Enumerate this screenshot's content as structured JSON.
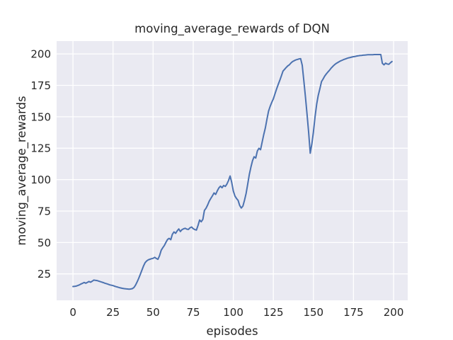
{
  "chart_data": {
    "type": "line",
    "title": "moving_average_rewards of DQN",
    "xlabel": "episodes",
    "ylabel": "moving_average_rewards",
    "x_ticks": [
      0,
      25,
      50,
      75,
      100,
      125,
      150,
      175,
      200
    ],
    "y_ticks": [
      25,
      50,
      75,
      100,
      125,
      150,
      175,
      200
    ],
    "xlim": [
      -10.2,
      208.8
    ],
    "ylim": [
      4.0,
      210.2
    ],
    "grid": true,
    "legend_position": "none",
    "style": "seaborn-darkgrid",
    "colors": {
      "line": "#4c72b0",
      "plot_background": "#eaeaf2",
      "gridline": "#ffffff",
      "figure_background": "#ffffff",
      "text": "#262626"
    },
    "series": [
      {
        "name": "moving_average_rewards",
        "x_start": 0,
        "x_step": 1,
        "values": [
          15.0,
          15.1,
          15.3,
          15.8,
          16.3,
          17.0,
          17.6,
          18.2,
          17.6,
          18.3,
          19.0,
          18.4,
          19.2,
          20.1,
          19.9,
          19.7,
          19.3,
          18.9,
          18.5,
          18.1,
          17.6,
          17.2,
          16.8,
          16.3,
          16.0,
          15.7,
          15.2,
          14.8,
          14.5,
          14.1,
          13.8,
          13.5,
          13.3,
          13.1,
          13.0,
          12.9,
          13.0,
          13.3,
          14.2,
          16.0,
          18.6,
          21.5,
          24.6,
          28.0,
          31.4,
          34.0,
          35.4,
          36.2,
          36.7,
          37.1,
          37.4,
          38.2,
          37.3,
          36.6,
          39.5,
          43.8,
          45.8,
          47.6,
          50.2,
          52.4,
          53.3,
          52.2,
          56.5,
          58.4,
          57.3,
          59.2,
          60.8,
          58.7,
          60.2,
          60.9,
          61.3,
          60.6,
          60.4,
          61.7,
          62.3,
          61.0,
          60.3,
          59.9,
          63.6,
          67.9,
          66.5,
          68.4,
          75.5,
          77.3,
          79.8,
          82.9,
          85.1,
          87.1,
          89.4,
          88.2,
          91.0,
          93.4,
          94.8,
          93.6,
          95.4,
          94.6,
          96.4,
          99.2,
          102.9,
          98.0,
          91.0,
          87.0,
          85.0,
          83.5,
          79.5,
          77.4,
          79.0,
          83.5,
          89.0,
          96.5,
          104.0,
          110.0,
          115.1,
          118.2,
          117.2,
          122.8,
          124.9,
          123.8,
          130.0,
          135.8,
          141.2,
          147.9,
          154.5,
          158.3,
          161.4,
          164.2,
          168.3,
          172.0,
          175.6,
          179.0,
          182.5,
          186.3,
          187.8,
          189.2,
          190.5,
          191.4,
          192.8,
          193.9,
          194.6,
          195.2,
          195.6,
          196.0,
          196.2,
          191.0,
          179.0,
          166.0,
          152.0,
          138.0,
          121.0,
          128.4,
          138.0,
          150.0,
          160.0,
          167.0,
          172.2,
          177.9,
          180.0,
          182.3,
          184.0,
          185.6,
          187.0,
          188.6,
          190.0,
          191.2,
          192.2,
          193.0,
          193.8,
          194.5,
          195.0,
          195.6,
          196.0,
          196.5,
          196.9,
          197.2,
          197.5,
          197.8,
          198.0,
          198.3,
          198.5,
          198.7,
          198.8,
          199.0,
          199.1,
          199.2,
          199.3,
          199.3,
          199.4,
          199.4,
          199.5,
          199.5,
          199.5,
          199.5,
          199.5,
          192.5,
          191.3,
          192.6,
          192.0,
          191.7,
          192.9,
          194.0
        ]
      }
    ]
  }
}
